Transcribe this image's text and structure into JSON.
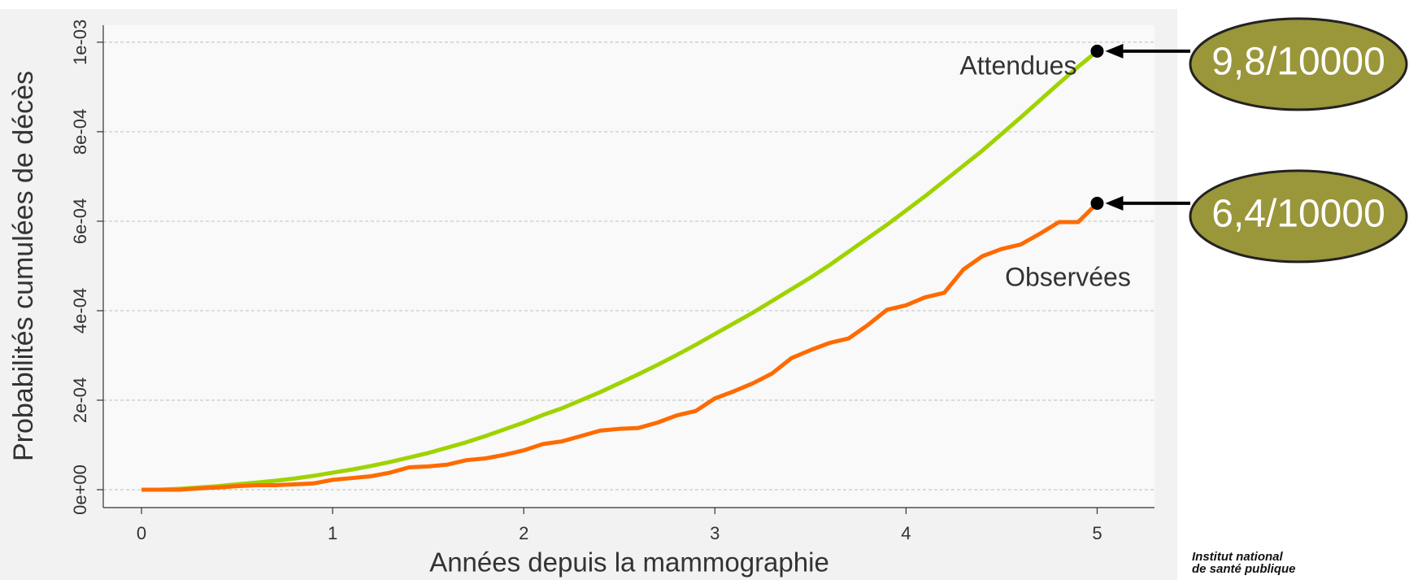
{
  "chart_data": {
    "type": "line",
    "x_label": "Années depuis la mammographie",
    "y_label": "Probabilités cumulées de décès",
    "x": [
      0,
      0.1,
      0.2,
      0.3,
      0.4,
      0.5,
      0.6,
      0.7,
      0.8,
      0.9,
      1,
      1.1,
      1.2,
      1.3,
      1.4,
      1.5,
      1.6,
      1.7,
      1.8,
      1.9,
      2,
      2.1,
      2.2,
      2.3,
      2.4,
      2.5,
      2.6,
      2.7,
      2.8,
      2.9,
      3,
      3.1,
      3.2,
      3.3,
      3.4,
      3.5,
      3.6,
      3.7,
      3.8,
      3.9,
      4,
      4.1,
      4.2,
      4.3,
      4.4,
      4.5,
      4.6,
      4.7,
      4.8,
      4.9,
      5
    ],
    "series": [
      {
        "name": "Attendues",
        "color": "#9fd300",
        "values": [
          0,
          0,
          2e-06,
          5e-06,
          8e-06,
          1.2e-05,
          1.6e-05,
          2e-05,
          2.5e-05,
          3.1e-05,
          3.8e-05,
          4.5e-05,
          5.3e-05,
          6.2e-05,
          7.2e-05,
          8.2e-05,
          9.4e-05,
          0.000106,
          0.00012,
          0.000135,
          0.00015,
          0.000167,
          0.000182,
          0.0002,
          0.000218,
          0.000238,
          0.000258,
          0.000279,
          0.000301,
          0.000324,
          0.000348,
          0.000372,
          0.000396,
          0.000422,
          0.000448,
          0.000474,
          0.000502,
          0.000532,
          0.000562,
          0.000592,
          0.000624,
          0.000656,
          0.00069,
          0.000724,
          0.000758,
          0.000795,
          0.000832,
          0.00087,
          0.000908,
          0.000945,
          0.00098
        ]
      },
      {
        "name": "Observées",
        "color": "#ff6a00",
        "values": [
          0,
          0,
          0,
          3e-06,
          5e-06,
          8e-06,
          1e-05,
          1e-05,
          1.2e-05,
          1.4e-05,
          2.2e-05,
          2.6e-05,
          3e-05,
          3.8e-05,
          5e-05,
          5.2e-05,
          5.6e-05,
          6.6e-05,
          7e-05,
          7.8e-05,
          8.8e-05,
          0.000102,
          0.000108,
          0.00012,
          0.000132,
          0.000136,
          0.000138,
          0.00015,
          0.000166,
          0.000176,
          0.000204,
          0.00022,
          0.000238,
          0.00026,
          0.000294,
          0.000312,
          0.000328,
          0.000338,
          0.000368,
          0.000402,
          0.000412,
          0.00043,
          0.00044,
          0.000492,
          0.000522,
          0.000538,
          0.000548,
          0.000572,
          0.000598,
          0.000598,
          0.00064
        ]
      }
    ],
    "annotations": [
      "9,8/10000",
      "6,4/10000"
    ],
    "annotation_color": "#9a963a",
    "xlim": [
      -0.2,
      5.3
    ],
    "xticks": [
      0,
      1,
      2,
      3,
      4,
      5
    ],
    "ylim": [
      -4e-05,
      0.001038
    ],
    "yticks": [
      {
        "value": 0,
        "label": "0e+00"
      },
      {
        "value": 0.0002,
        "label": "2e-04"
      },
      {
        "value": 0.0004,
        "label": "4e-04"
      },
      {
        "value": 0.0006,
        "label": "6e-04"
      },
      {
        "value": 0.0008,
        "label": "8e-04"
      },
      {
        "value": 0.001,
        "label": "1e-03"
      }
    ],
    "grid": true
  },
  "logo": [
    "Institut national",
    "de santé publique"
  ]
}
